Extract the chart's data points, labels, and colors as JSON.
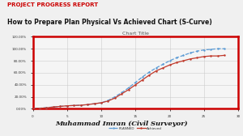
{
  "bg_color": "#f0f0f0",
  "chart_bg": "#f5f5f5",
  "outer_border_color": "#cc0000",
  "title_red": "PROJECT PROGRESS REPORT",
  "title_black": "How to Prepare Plan Physical Vs Achieved Chart (S-Curve)",
  "chart_title": "Chart Title",
  "footer": "Muhammad Imran (Civil Surveyor)",
  "x_ticks": [
    0,
    5,
    10,
    15,
    20,
    25,
    30
  ],
  "planned_x": [
    0,
    1,
    2,
    3,
    4,
    5,
    6,
    7,
    8,
    9,
    10,
    11,
    12,
    13,
    14,
    15,
    16,
    17,
    18,
    19,
    20,
    21,
    22,
    23,
    24,
    25,
    26,
    27,
    28
  ],
  "planned_y": [
    0.0,
    0.01,
    0.02,
    0.03,
    0.04,
    0.05,
    0.055,
    0.06,
    0.07,
    0.085,
    0.1,
    0.14,
    0.2,
    0.27,
    0.35,
    0.44,
    0.53,
    0.61,
    0.68,
    0.74,
    0.8,
    0.85,
    0.89,
    0.93,
    0.96,
    0.98,
    0.99,
    1.0,
    1.0
  ],
  "achieved_x": [
    0,
    1,
    2,
    3,
    4,
    5,
    6,
    7,
    8,
    9,
    10,
    11,
    12,
    13,
    14,
    15,
    16,
    17,
    18,
    19,
    20,
    21,
    22,
    23,
    24,
    25,
    26,
    27,
    28
  ],
  "achieved_y": [
    0.0,
    0.01,
    0.015,
    0.03,
    0.04,
    0.05,
    0.055,
    0.06,
    0.07,
    0.085,
    0.1,
    0.13,
    0.18,
    0.25,
    0.32,
    0.4,
    0.48,
    0.56,
    0.63,
    0.68,
    0.73,
    0.77,
    0.8,
    0.83,
    0.85,
    0.87,
    0.88,
    0.88,
    0.89
  ],
  "planned_color": "#5b9bd5",
  "achieved_color": "#c0392b",
  "y_ticks": [
    0.0,
    0.2,
    0.4,
    0.6,
    0.8,
    1.0,
    1.2
  ],
  "y_labels": [
    "0.00%",
    "20.00%",
    "40.00%",
    "60.00%",
    "80.00%",
    "100.00%",
    "120.00%"
  ],
  "title_red_color": "#cc0000",
  "title_black_color": "#111111",
  "footer_color": "#111111"
}
